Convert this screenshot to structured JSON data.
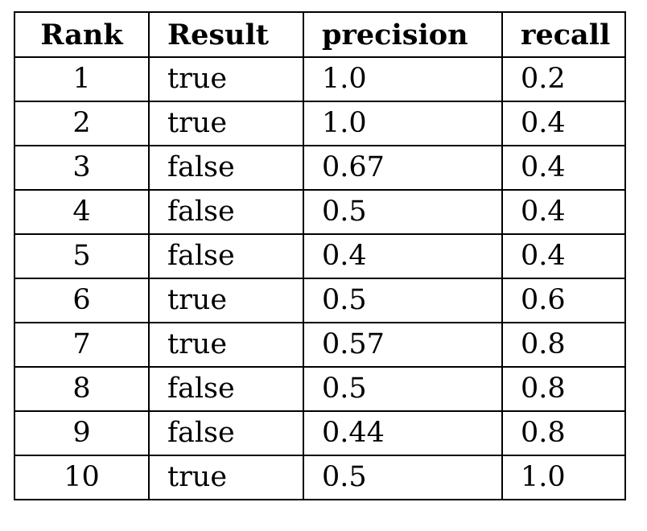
{
  "table": {
    "headers": {
      "rank": "Rank",
      "result": "Result",
      "precision": "precision",
      "recall": "recall"
    },
    "rows": [
      {
        "rank": "1",
        "result": "true",
        "precision": "1.0",
        "recall": "0.2"
      },
      {
        "rank": "2",
        "result": "true",
        "precision": "1.0",
        "recall": "0.4"
      },
      {
        "rank": "3",
        "result": "false",
        "precision": "0.67",
        "recall": "0.4"
      },
      {
        "rank": "4",
        "result": "false",
        "precision": "0.5",
        "recall": "0.4"
      },
      {
        "rank": "5",
        "result": "false",
        "precision": "0.4",
        "recall": "0.4"
      },
      {
        "rank": "6",
        "result": "true",
        "precision": "0.5",
        "recall": "0.6"
      },
      {
        "rank": "7",
        "result": "true",
        "precision": "0.57",
        "recall": "0.8"
      },
      {
        "rank": "8",
        "result": "false",
        "precision": "0.5",
        "recall": "0.8"
      },
      {
        "rank": "9",
        "result": "false",
        "precision": "0.44",
        "recall": "0.8"
      },
      {
        "rank": "10",
        "result": "true",
        "precision": "0.5",
        "recall": "1.0"
      }
    ]
  }
}
